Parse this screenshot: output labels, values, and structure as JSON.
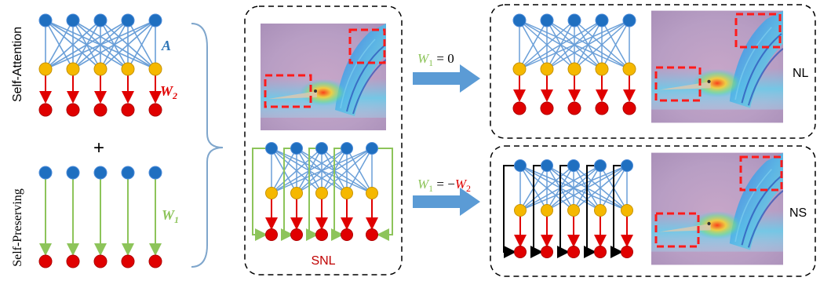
{
  "labels": {
    "self_attention": "Self-Attention",
    "self_preserving": "Self-Preserving",
    "plus": "+",
    "matrix_a": "A",
    "matrix_w2": "W",
    "matrix_w2_sub": "2",
    "matrix_w1": "W",
    "matrix_w1_sub": "1",
    "snl": "SNL",
    "nl": "NL",
    "ns": "NS"
  },
  "equations": {
    "nl_condition": {
      "lhs": "W",
      "lhs_sub": "1",
      "op": " = 0"
    },
    "ns_condition": {
      "lhs": "W",
      "lhs_sub": "1",
      "op": " = −",
      "rhs": "W",
      "rhs_sub": "2"
    }
  },
  "colors": {
    "blue_node": "#1f6fc0",
    "yellow_node": "#f5b800",
    "red_node": "#e00000",
    "attention_edge": "#6a9fd8",
    "w2_arrow": "#e00000",
    "w1_arrow": "#8dc45a",
    "skip_arrow": "#000000",
    "brace": "#7fa6cc",
    "big_arrow": "#5b9bd5",
    "label_blue": "#2e75b6",
    "label_red": "#e00000",
    "label_green": "#8dc45a",
    "label_snl": "#c00000"
  }
}
